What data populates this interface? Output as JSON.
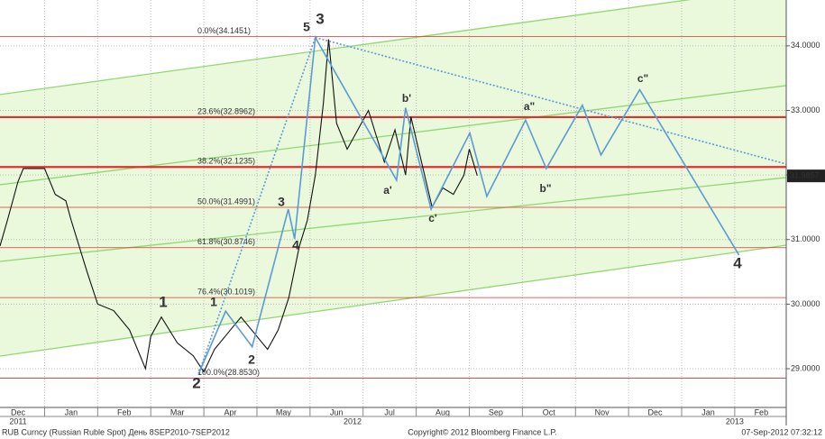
{
  "chart_data": {
    "type": "line",
    "xlim": [
      -0.34,
      14.47
    ],
    "ylim": [
      28.4,
      34.71
    ],
    "yticks": [
      {
        "value": 29,
        "label": "29.0000"
      },
      {
        "value": 30,
        "label": "30.0000"
      },
      {
        "value": 31,
        "label": "31.0000"
      },
      {
        "value": 32,
        "label": "32.0000"
      },
      {
        "value": 33,
        "label": "33.0000"
      },
      {
        "value": 34,
        "label": "34.0000"
      }
    ],
    "xticks": [
      {
        "value": 0,
        "label": "Dec"
      },
      {
        "value": 1,
        "label": "Jan"
      },
      {
        "value": 2,
        "label": "Feb"
      },
      {
        "value": 3,
        "label": "Mar"
      },
      {
        "value": 4,
        "label": "Apr"
      },
      {
        "value": 5,
        "label": "May"
      },
      {
        "value": 6,
        "label": "Jun"
      },
      {
        "value": 7,
        "label": "Jul"
      },
      {
        "value": 8,
        "label": "Aug"
      },
      {
        "value": 9,
        "label": "Sep"
      },
      {
        "value": 10,
        "label": "Oct"
      },
      {
        "value": 11,
        "label": "Nov"
      },
      {
        "value": 12,
        "label": "Dec"
      },
      {
        "value": 13,
        "label": "Jan"
      },
      {
        "value": 14,
        "label": "Feb"
      }
    ],
    "years": [
      {
        "value": 0,
        "label": "2011"
      },
      {
        "value": 6.3,
        "label": "2012"
      },
      {
        "value": 13.5,
        "label": "2013"
      }
    ],
    "grid": true,
    "series": [
      {
        "color": "#111111",
        "style": "solid",
        "x": [
          -0.34,
          -0.2,
          0,
          0.1,
          0.5,
          0.7,
          0.9,
          1.0,
          1.3,
          1.5,
          1.8,
          2.1,
          2.4,
          2.5,
          2.7,
          3.0,
          3.3,
          3.5,
          3.7,
          4.0,
          4.2,
          4.5,
          4.7,
          4.9,
          5.1,
          5.3,
          5.45,
          5.6,
          5.75,
          5.85,
          6.0,
          6.2,
          6.4,
          6.6,
          6.75,
          6.9,
          7.1,
          7.3,
          7.4,
          7.6,
          7.8,
          8.0,
          8.2,
          8.4,
          8.5,
          8.65
        ],
        "values": [
          30.9,
          31.3,
          31.9,
          32.1,
          32.1,
          31.7,
          31.6,
          31.3,
          30.5,
          30.0,
          29.9,
          29.6,
          29.0,
          29.5,
          29.8,
          29.4,
          29.2,
          28.95,
          29.3,
          29.6,
          29.8,
          29.5,
          29.3,
          29.6,
          30.1,
          30.9,
          31.3,
          32.0,
          33.1,
          34.1,
          32.8,
          32.4,
          32.7,
          33.0,
          32.6,
          32.2,
          32.7,
          32.0,
          32.9,
          32.2,
          31.5,
          31.8,
          31.7,
          32.0,
          32.4,
          31.99
        ]
      },
      {
        "color": "#5b9bd5",
        "style": "solid",
        "x": [
          3.4,
          3.91,
          4.41,
          5.09,
          5.21,
          5.6,
          7.13,
          7.3,
          7.78,
          8.51,
          8.83,
          9.56,
          9.95,
          10.63,
          10.98,
          11.71,
          13.58
        ],
        "values": [
          28.92,
          29.89,
          29.34,
          31.47,
          31.01,
          34.13,
          31.92,
          33.04,
          31.47,
          32.65,
          31.67,
          32.85,
          32.1,
          33.08,
          32.31,
          33.32,
          30.76
        ]
      },
      {
        "color": "#5b9bd5",
        "style": "dotted",
        "x": [
          3.4,
          5.6
        ],
        "values": [
          28.92,
          34.13
        ]
      },
      {
        "color": "#5b9bd5",
        "style": "dotted",
        "x": [
          5.6,
          14.47
        ],
        "values": [
          34.13,
          32.17
        ]
      }
    ],
    "channel_lines": [
      {
        "x": [
          -0.34,
          14.47
        ],
        "values": [
          33.246,
          34.922
        ]
      },
      {
        "x": [
          -0.34,
          14.47
        ],
        "values": [
          31.849,
          33.385
        ]
      },
      {
        "x": [
          -0.34,
          14.47
        ],
        "values": [
          30.662,
          31.961
        ]
      },
      {
        "x": [
          -0.34,
          14.47
        ],
        "values": [
          29.196,
          30.913
        ]
      }
    ],
    "levels": [
      {
        "label": "0.0%(34.1451)",
        "value": 34.1451,
        "thick": false
      },
      {
        "label": "23.6%(32.8962)",
        "value": 32.8962,
        "thick": true
      },
      {
        "label": "38.2%(32.1235)",
        "value": 32.1235,
        "thick": true
      },
      {
        "label": "50.0%(31.4991)",
        "value": 31.4991,
        "thick": false
      },
      {
        "label": "61.8%(30.8746)",
        "value": 30.8746,
        "thick": false
      },
      {
        "label": "76.4%(30.1019)",
        "value": 30.1019,
        "thick": false
      },
      {
        "label": "100.0%(28.8530)",
        "value": 28.853,
        "thick": false
      }
    ],
    "last_price": 31.9857,
    "wave_labels": [
      {
        "text": "1",
        "color": "#e00000"
      },
      {
        "text": "2",
        "color": "#e00000"
      },
      {
        "text": "3",
        "color": "#e00000"
      },
      {
        "text": "4",
        "color": "#e00000"
      },
      {
        "text": "1",
        "color": "#5b9bd5"
      },
      {
        "text": "2",
        "color": "#5b9bd5"
      },
      {
        "text": "3",
        "color": "#5b9bd5"
      },
      {
        "text": "4",
        "color": "#5b9bd5"
      },
      {
        "text": "5",
        "color": "#5b9bd5"
      },
      {
        "text": "a'",
        "color": "#a030b0"
      },
      {
        "text": "b'",
        "color": "#a030b0"
      },
      {
        "text": "c'",
        "color": "#a030b0"
      },
      {
        "text": "a\"",
        "color": "#a030b0"
      },
      {
        "text": "b\"",
        "color": "#a030b0"
      },
      {
        "text": "c\"",
        "color": "#a030b0"
      }
    ],
    "footer": {
      "left": "RUB Curncy (Russian Ruble Spot) День 8SEP2010-7SEP2012",
      "center": "Copyright© 2012 Bloomberg Finance L.P.",
      "right": "07-Sep-2012 07:32:12"
    }
  }
}
